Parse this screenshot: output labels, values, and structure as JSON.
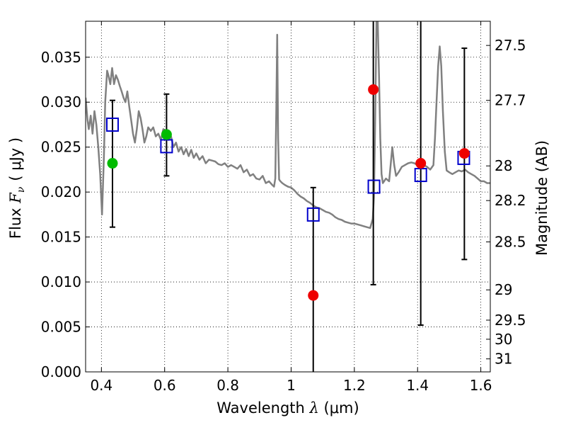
{
  "chart_data": {
    "type": "scatter",
    "title": "",
    "xlabel": "Wavelength  λ (μm)",
    "ylabel": "Flux  F_ν  ( μJy )",
    "ylabel_parts": {
      "prefix": "Flux ",
      "symbol": "F",
      "sub": "ν",
      "unit": "( μJy )"
    },
    "xlabel_parts": {
      "prefix": "Wavelength  ",
      "symbol": "λ",
      "unit": " (μm)"
    },
    "y2label": "Magnitude (AB)",
    "xlim": [
      0.35,
      1.63
    ],
    "ylim": [
      0.0,
      0.039
    ],
    "grid": true,
    "x_ticks": [
      {
        "value": 0.4,
        "label": "0.4"
      },
      {
        "value": 0.6,
        "label": "0.6"
      },
      {
        "value": 0.8,
        "label": "0.8"
      },
      {
        "value": 1.0,
        "label": "1"
      },
      {
        "value": 1.2,
        "label": "1.2"
      },
      {
        "value": 1.4,
        "label": "1.4"
      },
      {
        "value": 1.6,
        "label": "1.6"
      }
    ],
    "y_ticks": [
      {
        "value": 0.0,
        "label": "0.000"
      },
      {
        "value": 0.005,
        "label": "0.005"
      },
      {
        "value": 0.01,
        "label": "0.010"
      },
      {
        "value": 0.015,
        "label": "0.015"
      },
      {
        "value": 0.02,
        "label": "0.020"
      },
      {
        "value": 0.025,
        "label": "0.025"
      },
      {
        "value": 0.03,
        "label": "0.030"
      },
      {
        "value": 0.035,
        "label": "0.035"
      }
    ],
    "y2_ticks": [
      {
        "mag": 27.5,
        "label": "27.5"
      },
      {
        "mag": 27.7,
        "label": "27.7"
      },
      {
        "mag": 28.0,
        "label": "28"
      },
      {
        "mag": 28.2,
        "label": "28.2"
      },
      {
        "mag": 28.5,
        "label": "28.5"
      },
      {
        "mag": 29.0,
        "label": "29"
      },
      {
        "mag": 29.5,
        "label": "29.5"
      },
      {
        "mag": 30.0,
        "label": "30"
      },
      {
        "mag": 31.0,
        "label": "31"
      }
    ],
    "colors": {
      "spectrum": "#808080",
      "model_box": "#0000cc",
      "detected": "#00bb00",
      "upper": "#ee0000",
      "errorbar": "#000000"
    },
    "spectrum": {
      "x": [
        0.35,
        0.356,
        0.36,
        0.366,
        0.372,
        0.378,
        0.384,
        0.39,
        0.396,
        0.402,
        0.408,
        0.412,
        0.418,
        0.422,
        0.428,
        0.434,
        0.44,
        0.446,
        0.452,
        0.458,
        0.464,
        0.47,
        0.476,
        0.482,
        0.488,
        0.494,
        0.5,
        0.506,
        0.512,
        0.518,
        0.524,
        0.53,
        0.536,
        0.542,
        0.548,
        0.556,
        0.564,
        0.572,
        0.58,
        0.588,
        0.596,
        0.604,
        0.612,
        0.62,
        0.628,
        0.636,
        0.644,
        0.652,
        0.66,
        0.668,
        0.676,
        0.684,
        0.692,
        0.7,
        0.71,
        0.72,
        0.73,
        0.74,
        0.75,
        0.76,
        0.77,
        0.78,
        0.79,
        0.8,
        0.81,
        0.82,
        0.83,
        0.84,
        0.85,
        0.86,
        0.87,
        0.88,
        0.89,
        0.9,
        0.91,
        0.92,
        0.93,
        0.94,
        0.946,
        0.95,
        0.953,
        0.956,
        0.959,
        0.962,
        0.966,
        0.972,
        0.98,
        0.99,
        1.0,
        1.01,
        1.02,
        1.03,
        1.04,
        1.05,
        1.06,
        1.07,
        1.08,
        1.09,
        1.1,
        1.11,
        1.12,
        1.13,
        1.14,
        1.15,
        1.16,
        1.17,
        1.18,
        1.19,
        1.2,
        1.21,
        1.22,
        1.23,
        1.24,
        1.25,
        1.254,
        1.258,
        1.262,
        1.266,
        1.27,
        1.274,
        1.278,
        1.282,
        1.286,
        1.29,
        1.3,
        1.31,
        1.32,
        1.326,
        1.332,
        1.34,
        1.35,
        1.36,
        1.37,
        1.38,
        1.39,
        1.4,
        1.41,
        1.42,
        1.43,
        1.44,
        1.45,
        1.455,
        1.46,
        1.465,
        1.47,
        1.475,
        1.48,
        1.486,
        1.492,
        1.5,
        1.51,
        1.52,
        1.53,
        1.54,
        1.55,
        1.56,
        1.57,
        1.58,
        1.59,
        1.6,
        1.61,
        1.62,
        1.63
      ],
      "y": [
        0.0305,
        0.028,
        0.027,
        0.0285,
        0.0265,
        0.029,
        0.0275,
        0.025,
        0.022,
        0.0175,
        0.024,
        0.03,
        0.0335,
        0.033,
        0.032,
        0.0338,
        0.032,
        0.033,
        0.0325,
        0.0318,
        0.0312,
        0.0305,
        0.03,
        0.0312,
        0.0295,
        0.028,
        0.0265,
        0.0255,
        0.027,
        0.029,
        0.0282,
        0.027,
        0.0255,
        0.0262,
        0.0272,
        0.0268,
        0.0272,
        0.0262,
        0.0265,
        0.0258,
        0.027,
        0.0262,
        0.0258,
        0.0262,
        0.025,
        0.0255,
        0.0245,
        0.025,
        0.0242,
        0.0248,
        0.024,
        0.0247,
        0.0238,
        0.0243,
        0.0236,
        0.024,
        0.0232,
        0.0236,
        0.0235,
        0.0234,
        0.0231,
        0.023,
        0.0232,
        0.0228,
        0.023,
        0.0228,
        0.0226,
        0.023,
        0.0222,
        0.0225,
        0.0218,
        0.022,
        0.0215,
        0.0214,
        0.0218,
        0.021,
        0.0212,
        0.0208,
        0.0206,
        0.0215,
        0.029,
        0.0375,
        0.026,
        0.0214,
        0.0212,
        0.021,
        0.0208,
        0.0206,
        0.0205,
        0.0202,
        0.0198,
        0.0195,
        0.0193,
        0.019,
        0.0188,
        0.0185,
        0.0183,
        0.0182,
        0.018,
        0.0178,
        0.0177,
        0.0175,
        0.0172,
        0.017,
        0.0169,
        0.0167,
        0.0166,
        0.0165,
        0.0165,
        0.0164,
        0.0163,
        0.0162,
        0.0161,
        0.016,
        0.0165,
        0.017,
        0.0195,
        0.028,
        0.039,
        0.039,
        0.033,
        0.026,
        0.022,
        0.021,
        0.0215,
        0.0212,
        0.025,
        0.023,
        0.0218,
        0.0222,
        0.0228,
        0.023,
        0.0232,
        0.0233,
        0.0232,
        0.023,
        0.0232,
        0.023,
        0.0228,
        0.0225,
        0.023,
        0.026,
        0.03,
        0.034,
        0.0362,
        0.034,
        0.029,
        0.0245,
        0.0224,
        0.0222,
        0.022,
        0.0222,
        0.0224,
        0.0223,
        0.0225,
        0.0222,
        0.022,
        0.0218,
        0.0215,
        0.0212,
        0.0212,
        0.021,
        0.021
      ]
    },
    "model_boxes": [
      {
        "x": 0.435,
        "y": 0.0275
      },
      {
        "x": 0.606,
        "y": 0.0251
      },
      {
        "x": 1.07,
        "y": 0.0175
      },
      {
        "x": 1.262,
        "y": 0.0206
      },
      {
        "x": 1.41,
        "y": 0.0219
      },
      {
        "x": 1.546,
        "y": 0.0238
      }
    ],
    "points": [
      {
        "x": 0.435,
        "y": 0.0232,
        "err_low": 0.0161,
        "err_high": 0.0302,
        "kind": "detected",
        "clip_top": false
      },
      {
        "x": 0.606,
        "y": 0.0264,
        "err_low": 0.0218,
        "err_high": 0.0309,
        "kind": "detected",
        "clip_top": false
      },
      {
        "x": 1.07,
        "y": 0.0085,
        "err_low": 0.0,
        "err_high": 0.0205,
        "kind": "upper",
        "clip_top": false
      },
      {
        "x": 1.26,
        "y": 0.0314,
        "err_low": 0.0097,
        "err_high": 0.039,
        "kind": "upper",
        "clip_top": true
      },
      {
        "x": 1.41,
        "y": 0.0232,
        "err_low": 0.0052,
        "err_high": 0.039,
        "kind": "upper",
        "clip_top": true
      },
      {
        "x": 1.548,
        "y": 0.0243,
        "err_low": 0.0125,
        "err_high": 0.036,
        "kind": "upper",
        "clip_top": false
      }
    ]
  }
}
